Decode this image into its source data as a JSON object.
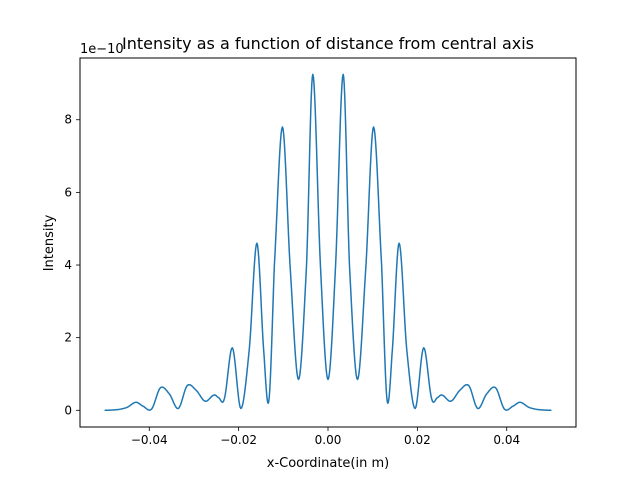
{
  "chart_data": {
    "type": "line",
    "title": "Intensity as a function of distance from central axis",
    "xlabel": "x-Coordinate(in m)",
    "ylabel": "Intensity",
    "offset_label": "1e−10",
    "xlim": [
      -0.0555,
      0.0555
    ],
    "ylim": [
      -0.46,
      9.7
    ],
    "x_ticks": [
      -0.04,
      -0.02,
      0.0,
      0.02,
      0.04
    ],
    "x_tick_labels": [
      "−0.04",
      "−0.02",
      "0.00",
      "0.02",
      "0.04"
    ],
    "y_ticks": [
      0,
      2,
      4,
      6,
      8
    ],
    "y_tick_labels": [
      "0",
      "2",
      "4",
      "6",
      "8"
    ],
    "grid": false,
    "series": [
      {
        "name": "Intensity",
        "color": "#1f77b4",
        "x": [
          -0.05,
          -0.047,
          -0.045,
          -0.043,
          -0.0415,
          -0.0395,
          -0.0375,
          -0.0355,
          -0.0335,
          -0.0315,
          -0.0295,
          -0.0275,
          -0.0255,
          -0.0245,
          -0.0232,
          -0.0214,
          -0.0195,
          -0.0176,
          -0.0159,
          -0.0143,
          -0.0132,
          -0.012,
          -0.0102,
          -0.0085,
          -0.0066,
          -0.0048,
          -0.0034,
          -0.0017,
          0.0,
          0.0017,
          0.0034,
          0.0048,
          0.0066,
          0.0085,
          0.0102,
          0.012,
          0.0132,
          0.0143,
          0.0159,
          0.0176,
          0.0195,
          0.0214,
          0.0232,
          0.0245,
          0.0255,
          0.0275,
          0.0295,
          0.0315,
          0.0335,
          0.0355,
          0.0375,
          0.0395,
          0.0415,
          0.043,
          0.045,
          0.047,
          0.05
        ],
        "values": [
          0.0,
          0.02,
          0.08,
          0.22,
          0.12,
          0.03,
          0.62,
          0.45,
          0.05,
          0.68,
          0.55,
          0.25,
          0.42,
          0.35,
          0.32,
          1.72,
          0.05,
          1.7,
          4.6,
          1.5,
          0.3,
          4.0,
          7.8,
          4.0,
          0.85,
          4.0,
          9.25,
          4.0,
          0.85,
          4.0,
          9.25,
          4.0,
          0.85,
          4.0,
          7.8,
          4.0,
          0.3,
          1.5,
          4.6,
          1.7,
          0.05,
          1.72,
          0.32,
          0.35,
          0.42,
          0.25,
          0.55,
          0.68,
          0.05,
          0.45,
          0.62,
          0.03,
          0.12,
          0.22,
          0.08,
          0.02,
          0.0
        ]
      }
    ]
  }
}
